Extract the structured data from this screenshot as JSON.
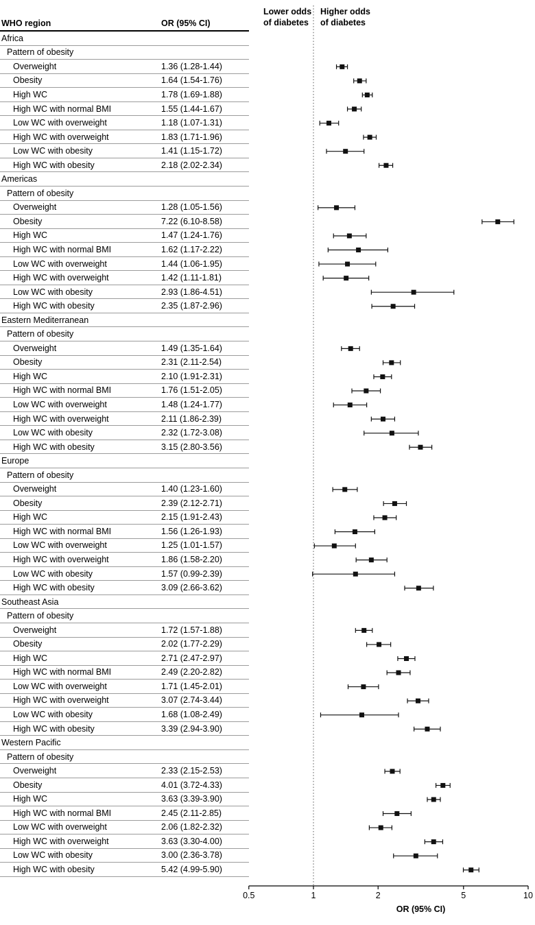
{
  "chart_data": {
    "type": "forest",
    "x_scale": "log",
    "xlim": [
      0.5,
      10
    ],
    "x_ticks": [
      0.5,
      1,
      2,
      5,
      10
    ],
    "xlabel": "OR (95% CI)",
    "reference_line": 1,
    "marker_color": "#111111",
    "col_headers": {
      "region": "WHO region",
      "or": "OR (95% CI)"
    },
    "direction_labels": {
      "lower_line1": "Lower odds",
      "lower_line2": "of diabetes",
      "higher_line1": "Higher odds",
      "higher_line2": "of diabetes"
    },
    "groups": [
      {
        "region": "Africa",
        "subheader": "Pattern of obesity",
        "rows": [
          {
            "label": "Overweight",
            "or_text": "1.36 (1.28-1.44)",
            "or": 1.36,
            "lo": 1.28,
            "hi": 1.44
          },
          {
            "label": "Obesity",
            "or_text": "1.64 (1.54-1.76)",
            "or": 1.64,
            "lo": 1.54,
            "hi": 1.76
          },
          {
            "label": "High WC",
            "or_text": "1.78 (1.69-1.88)",
            "or": 1.78,
            "lo": 1.69,
            "hi": 1.88
          },
          {
            "label": "High WC with normal BMI",
            "or_text": "1.55 (1.44-1.67)",
            "or": 1.55,
            "lo": 1.44,
            "hi": 1.67
          },
          {
            "label": "Low WC with overweight",
            "or_text": "1.18 (1.07-1.31)",
            "or": 1.18,
            "lo": 1.07,
            "hi": 1.31
          },
          {
            "label": "High WC with overweight",
            "or_text": "1.83 (1.71-1.96)",
            "or": 1.83,
            "lo": 1.71,
            "hi": 1.96
          },
          {
            "label": "Low WC with obesity",
            "or_text": "1.41 (1.15-1.72)",
            "or": 1.41,
            "lo": 1.15,
            "hi": 1.72
          },
          {
            "label": "High WC with obesity",
            "or_text": "2.18 (2.02-2.34)",
            "or": 2.18,
            "lo": 2.02,
            "hi": 2.34
          }
        ]
      },
      {
        "region": "Americas",
        "subheader": "Pattern of obesity",
        "rows": [
          {
            "label": "Overweight",
            "or_text": "1.28 (1.05-1.56)",
            "or": 1.28,
            "lo": 1.05,
            "hi": 1.56
          },
          {
            "label": "Obesity",
            "or_text": "7.22 (6.10-8.58)",
            "or": 7.22,
            "lo": 6.1,
            "hi": 8.58
          },
          {
            "label": "High WC",
            "or_text": "1.47 (1.24-1.76)",
            "or": 1.47,
            "lo": 1.24,
            "hi": 1.76
          },
          {
            "label": "High WC with normal BMI",
            "or_text": "1.62 (1.17-2.22)",
            "or": 1.62,
            "lo": 1.17,
            "hi": 2.22
          },
          {
            "label": "Low WC with overweight",
            "or_text": "1.44 (1.06-1.95)",
            "or": 1.44,
            "lo": 1.06,
            "hi": 1.95
          },
          {
            "label": "High WC with overweight",
            "or_text": "1.42 (1.11-1.81)",
            "or": 1.42,
            "lo": 1.11,
            "hi": 1.81
          },
          {
            "label": "Low WC with obesity",
            "or_text": "2.93 (1.86-4.51)",
            "or": 2.93,
            "lo": 1.86,
            "hi": 4.51
          },
          {
            "label": "High WC with obesity",
            "or_text": "2.35 (1.87-2.96)",
            "or": 2.35,
            "lo": 1.87,
            "hi": 2.96
          }
        ]
      },
      {
        "region": "Eastern Mediterranean",
        "subheader": "Pattern of obesity",
        "rows": [
          {
            "label": "Overweight",
            "or_text": "1.49 (1.35-1.64)",
            "or": 1.49,
            "lo": 1.35,
            "hi": 1.64
          },
          {
            "label": "Obesity",
            "or_text": "2.31 (2.11-2.54)",
            "or": 2.31,
            "lo": 2.11,
            "hi": 2.54
          },
          {
            "label": "High WC",
            "or_text": "2.10 (1.91-2.31)",
            "or": 2.1,
            "lo": 1.91,
            "hi": 2.31
          },
          {
            "label": "High WC with normal BMI",
            "or_text": "1.76 (1.51-2.05)",
            "or": 1.76,
            "lo": 1.51,
            "hi": 2.05
          },
          {
            "label": "Low WC with overweight",
            "or_text": "1.48 (1.24-1.77)",
            "or": 1.48,
            "lo": 1.24,
            "hi": 1.77
          },
          {
            "label": "High WC with overweight",
            "or_text": "2.11 (1.86-2.39)",
            "or": 2.11,
            "lo": 1.86,
            "hi": 2.39
          },
          {
            "label": "Low WC with obesity",
            "or_text": "2.32 (1.72-3.08)",
            "or": 2.32,
            "lo": 1.72,
            "hi": 3.08
          },
          {
            "label": "High WC with obesity",
            "or_text": "3.15 (2.80-3.56)",
            "or": 3.15,
            "lo": 2.8,
            "hi": 3.56
          }
        ]
      },
      {
        "region": "Europe",
        "subheader": "Pattern of obesity",
        "rows": [
          {
            "label": "Overweight",
            "or_text": "1.40 (1.23-1.60)",
            "or": 1.4,
            "lo": 1.23,
            "hi": 1.6
          },
          {
            "label": "Obesity",
            "or_text": "2.39 (2.12-2.71)",
            "or": 2.39,
            "lo": 2.12,
            "hi": 2.71
          },
          {
            "label": "High WC",
            "or_text": "2.15 (1.91-2.43)",
            "or": 2.15,
            "lo": 1.91,
            "hi": 2.43
          },
          {
            "label": "High WC with normal BMI",
            "or_text": "1.56 (1.26-1.93)",
            "or": 1.56,
            "lo": 1.26,
            "hi": 1.93
          },
          {
            "label": "Low WC with overweight",
            "or_text": "1.25 (1.01-1.57)",
            "or": 1.25,
            "lo": 1.01,
            "hi": 1.57
          },
          {
            "label": "High WC with overweight",
            "or_text": "1.86 (1.58-2.20)",
            "or": 1.86,
            "lo": 1.58,
            "hi": 2.2
          },
          {
            "label": "Low WC with obesity",
            "or_text": "1.57 (0.99-2.39)",
            "or": 1.57,
            "lo": 0.99,
            "hi": 2.39
          },
          {
            "label": "High WC with obesity",
            "or_text": "3.09 (2.66-3.62)",
            "or": 3.09,
            "lo": 2.66,
            "hi": 3.62
          }
        ]
      },
      {
        "region": "Southeast Asia",
        "subheader": "Pattern of obesity",
        "rows": [
          {
            "label": "Overweight",
            "or_text": "1.72 (1.57-1.88)",
            "or": 1.72,
            "lo": 1.57,
            "hi": 1.88
          },
          {
            "label": "Obesity",
            "or_text": "2.02 (1.77-2.29)",
            "or": 2.02,
            "lo": 1.77,
            "hi": 2.29
          },
          {
            "label": "High WC",
            "or_text": "2.71 (2.47-2.97)",
            "or": 2.71,
            "lo": 2.47,
            "hi": 2.97
          },
          {
            "label": "High WC with normal BMI",
            "or_text": "2.49 (2.20-2.82)",
            "or": 2.49,
            "lo": 2.2,
            "hi": 2.82
          },
          {
            "label": "Low WC with overweight",
            "or_text": "1.71 (1.45-2.01)",
            "or": 1.71,
            "lo": 1.45,
            "hi": 2.01
          },
          {
            "label": "High WC with overweight",
            "or_text": "3.07 (2.74-3.44)",
            "or": 3.07,
            "lo": 2.74,
            "hi": 3.44
          },
          {
            "label": "Low WC with obesity",
            "or_text": "1.68 (1.08-2.49)",
            "or": 1.68,
            "lo": 1.08,
            "hi": 2.49
          },
          {
            "label": "High WC with obesity",
            "or_text": "3.39 (2.94-3.90)",
            "or": 3.39,
            "lo": 2.94,
            "hi": 3.9
          }
        ]
      },
      {
        "region": "Western Pacific",
        "subheader": "Pattern of obesity",
        "rows": [
          {
            "label": "Overweight",
            "or_text": "2.33 (2.15-2.53)",
            "or": 2.33,
            "lo": 2.15,
            "hi": 2.53
          },
          {
            "label": "Obesity",
            "or_text": "4.01 (3.72-4.33)",
            "or": 4.01,
            "lo": 3.72,
            "hi": 4.33
          },
          {
            "label": "High WC",
            "or_text": "3.63 (3.39-3.90)",
            "or": 3.63,
            "lo": 3.39,
            "hi": 3.9
          },
          {
            "label": "High WC with normal BMI",
            "or_text": "2.45 (2.11-2.85)",
            "or": 2.45,
            "lo": 2.11,
            "hi": 2.85
          },
          {
            "label": "Low WC with overweight",
            "or_text": "2.06 (1.82-2.32)",
            "or": 2.06,
            "lo": 1.82,
            "hi": 2.32
          },
          {
            "label": "High WC with overweight",
            "or_text": "3.63 (3.30-4.00)",
            "or": 3.63,
            "lo": 3.3,
            "hi": 4.0
          },
          {
            "label": "Low WC with obesity",
            "or_text": "3.00 (2.36-3.78)",
            "or": 3.0,
            "lo": 2.36,
            "hi": 3.78
          },
          {
            "label": "High WC with obesity",
            "or_text": "5.42 (4.99-5.90)",
            "or": 5.42,
            "lo": 4.99,
            "hi": 5.9
          }
        ]
      }
    ]
  }
}
